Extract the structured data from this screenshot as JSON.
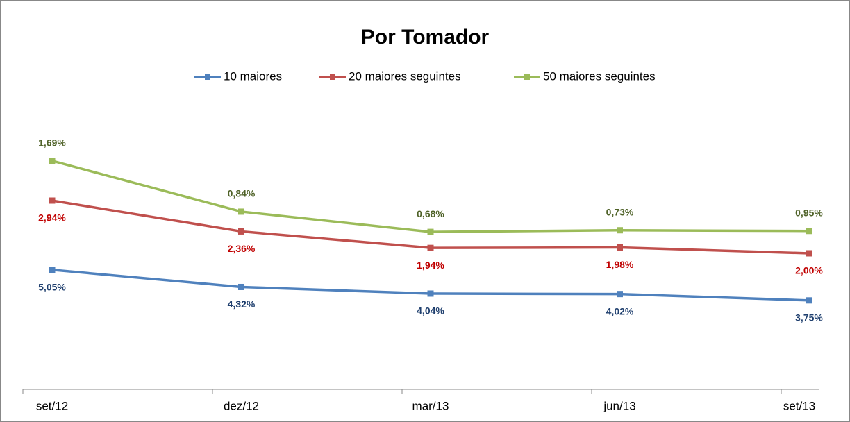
{
  "chart_data": {
    "type": "line",
    "stacked": true,
    "title": "Por Tomador",
    "categories": [
      "set/12",
      "dez/12",
      "mar/13",
      "jun/13",
      "set/13"
    ],
    "series": [
      {
        "name": "10 maiores",
        "color": "#4f81bd",
        "label_color": "#1f3f6e",
        "values": [
          5.05,
          4.32,
          4.04,
          4.02,
          3.75
        ],
        "value_labels": [
          "5,05%",
          "4,32%",
          "4,04%",
          "4,02%",
          "3,75%"
        ]
      },
      {
        "name": "20 maiores seguintes",
        "color": "#c0504d",
        "label_color": "#c00000",
        "values": [
          2.94,
          2.36,
          1.94,
          1.98,
          2.0
        ],
        "value_labels": [
          "2,94%",
          "2,36%",
          "1,94%",
          "1,98%",
          "2,00%"
        ]
      },
      {
        "name": "50  maiores seguintes",
        "color": "#9bbb59",
        "label_color": "#4f6228",
        "values": [
          1.69,
          0.84,
          0.68,
          0.73,
          0.95
        ],
        "value_labels": [
          "1,69%",
          "0,84%",
          "0,68%",
          "0,73%",
          "0,95%"
        ]
      }
    ],
    "ylim": [
      0,
      12
    ],
    "legend": "top"
  }
}
